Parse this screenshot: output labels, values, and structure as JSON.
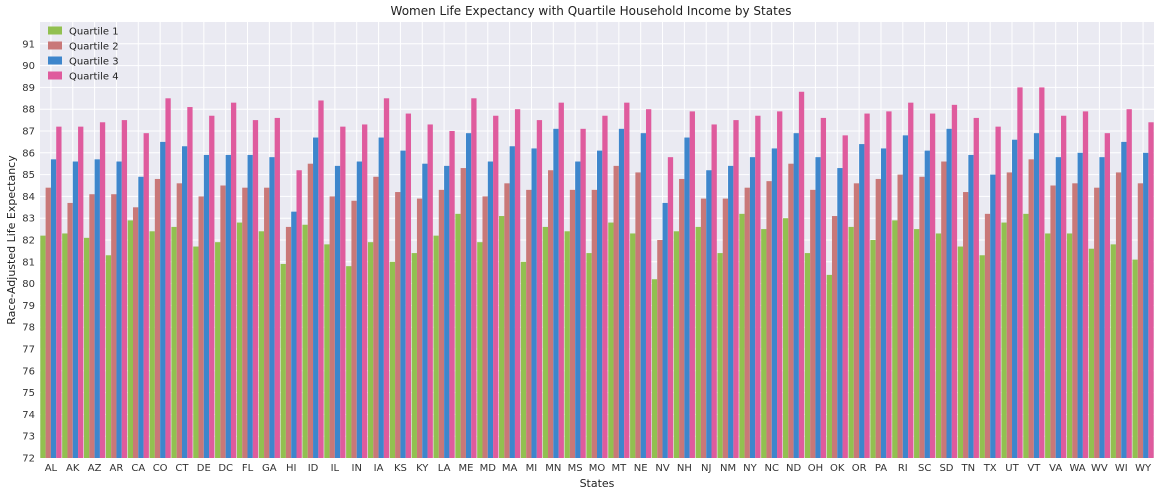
{
  "chart_data": {
    "type": "bar",
    "title": "Women Life Expectancy with Quartile Household Income by States",
    "xlabel": "States",
    "ylabel": "Race-Adjusted Life Expectancy",
    "ylim": [
      72,
      92
    ],
    "yticks": [
      72,
      73,
      74,
      75,
      76,
      77,
      78,
      79,
      80,
      81,
      82,
      83,
      84,
      85,
      86,
      87,
      88,
      89,
      90,
      91
    ],
    "grid": true,
    "legend_position": "top-left",
    "categories": [
      "AL",
      "AK",
      "AZ",
      "AR",
      "CA",
      "CO",
      "CT",
      "DE",
      "DC",
      "FL",
      "GA",
      "HI",
      "ID",
      "IL",
      "IN",
      "IA",
      "KS",
      "KY",
      "LA",
      "ME",
      "MD",
      "MA",
      "MI",
      "MN",
      "MS",
      "MO",
      "MT",
      "NE",
      "NV",
      "NH",
      "NJ",
      "NM",
      "NY",
      "NC",
      "ND",
      "OH",
      "OK",
      "OR",
      "PA",
      "RI",
      "SC",
      "SD",
      "TN",
      "TX",
      "UT",
      "VT",
      "VA",
      "WA",
      "WV",
      "WI",
      "WY"
    ],
    "series": [
      {
        "name": "Quartile 1",
        "color": "#92c050",
        "values": [
          82.2,
          82.3,
          82.1,
          81.3,
          82.9,
          82.4,
          82.6,
          81.7,
          81.9,
          82.8,
          82.4,
          80.9,
          82.7,
          81.8,
          80.8,
          81.9,
          81.0,
          81.4,
          82.2,
          83.2,
          81.9,
          83.1,
          81.0,
          82.6,
          82.4,
          81.4,
          82.8,
          82.3,
          80.2,
          82.4,
          82.6,
          81.4,
          83.2,
          82.5,
          83.0,
          81.4,
          80.4,
          82.6,
          82.0,
          82.9,
          82.5,
          82.3,
          81.7,
          81.3,
          82.8,
          83.2,
          82.3,
          82.3,
          81.6,
          81.8,
          81.1
        ]
      },
      {
        "name": "Quartile 2",
        "color": "#c97878",
        "values": [
          84.4,
          83.7,
          84.1,
          84.1,
          83.5,
          84.8,
          84.6,
          84.0,
          84.5,
          84.4,
          84.4,
          82.6,
          85.5,
          84.0,
          83.8,
          84.9,
          84.2,
          83.9,
          84.3,
          85.3,
          84.0,
          84.6,
          84.3,
          85.2,
          84.3,
          84.3,
          85.4,
          85.1,
          82.0,
          84.8,
          83.9,
          83.9,
          84.4,
          84.7,
          85.5,
          84.3,
          83.1,
          84.6,
          84.8,
          85.0,
          84.9,
          85.6,
          84.2,
          83.2,
          85.1,
          85.7,
          84.5,
          84.6,
          84.4,
          85.1,
          84.6
        ]
      },
      {
        "name": "Quartile 3",
        "color": "#3e86cc",
        "values": [
          85.7,
          85.6,
          85.7,
          85.6,
          84.9,
          86.5,
          86.3,
          85.9,
          85.9,
          85.9,
          85.8,
          83.3,
          86.7,
          85.4,
          85.6,
          86.7,
          86.1,
          85.5,
          85.4,
          86.9,
          85.6,
          86.3,
          86.2,
          87.1,
          85.6,
          86.1,
          87.1,
          86.9,
          83.7,
          86.7,
          85.2,
          85.4,
          85.8,
          86.2,
          86.9,
          85.8,
          85.3,
          86.4,
          86.2,
          86.8,
          86.1,
          87.1,
          85.9,
          85.0,
          86.6,
          86.9,
          85.8,
          86.0,
          85.8,
          86.5,
          86.0
        ]
      },
      {
        "name": "Quartile 4",
        "color": "#df5b9d",
        "values": [
          87.2,
          87.2,
          87.4,
          87.5,
          86.9,
          88.5,
          88.1,
          87.7,
          88.3,
          87.5,
          87.6,
          85.2,
          88.4,
          87.2,
          87.3,
          88.5,
          87.8,
          87.3,
          87.0,
          88.5,
          87.7,
          88.0,
          87.5,
          88.3,
          87.1,
          87.7,
          88.3,
          88.0,
          85.8,
          87.9,
          87.3,
          87.5,
          87.7,
          87.9,
          88.8,
          87.6,
          86.8,
          87.8,
          87.9,
          88.3,
          87.8,
          88.2,
          87.6,
          87.2,
          89.0,
          89.0,
          87.7,
          87.9,
          86.9,
          88.0,
          87.4
        ]
      }
    ]
  }
}
